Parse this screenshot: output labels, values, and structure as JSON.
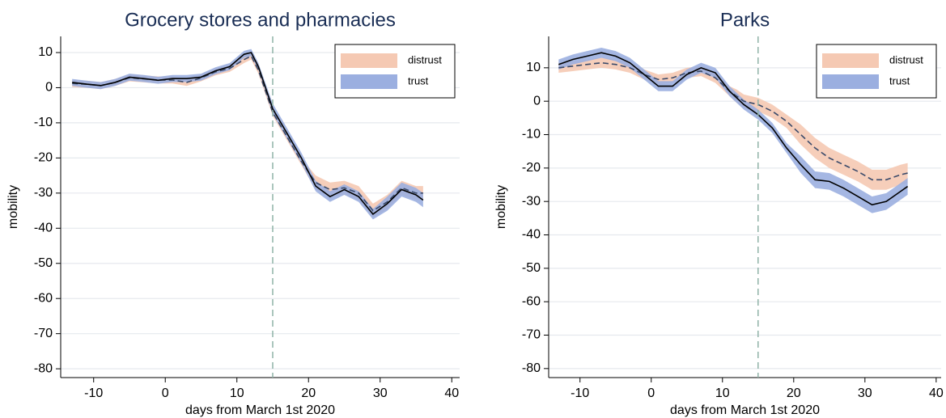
{
  "chart_data": [
    {
      "type": "line",
      "title": "Grocery stores and pharmacies",
      "xlabel": "days from March 1st 2020",
      "ylabel": "mobility",
      "x": [
        -13,
        -11,
        -9,
        -7,
        -5,
        -3,
        -1,
        1,
        3,
        5,
        7,
        9,
        11,
        12,
        13,
        15,
        17,
        19,
        21,
        23,
        25,
        27,
        29,
        31,
        33,
        35,
        36
      ],
      "xlim": [
        -14.6,
        41.1
      ],
      "ylim": [
        -82.5,
        14.6
      ],
      "xticks": [
        -10,
        0,
        10,
        20,
        30,
        40
      ],
      "yticks": [
        -80,
        -70,
        -60,
        -50,
        -40,
        -30,
        -20,
        -10,
        0,
        10
      ],
      "grid": true,
      "legend": "upper right",
      "vline": {
        "value": 15,
        "color": "#8fb3a8"
      },
      "series": [
        {
          "name": "distrust",
          "color": "#f5c9b3",
          "line_color": "#3a4a6a",
          "line_style": "dashed",
          "values": [
            1.2,
            1,
            0.6,
            1.5,
            2.8,
            2.5,
            2.2,
            2.2,
            1.5,
            2.8,
            4.5,
            5.5,
            8,
            9,
            5,
            -7,
            -14,
            -21,
            -27,
            -29,
            -28.5,
            -30,
            -35,
            -32.5,
            -28.5,
            -30,
            -30
          ],
          "lower": [
            0.2,
            0,
            -0.4,
            0.5,
            1.8,
            1.5,
            1.2,
            1.2,
            0.5,
            1.8,
            3.5,
            4.5,
            7,
            8,
            4,
            -8,
            -15,
            -22,
            -29,
            -31,
            -30.5,
            -32,
            -37,
            -34.5,
            -30.5,
            -32,
            -32
          ],
          "upper": [
            2.2,
            2,
            1.6,
            2.5,
            3.8,
            3.5,
            3.2,
            3.2,
            2.5,
            3.8,
            5.5,
            6.5,
            9,
            10,
            6,
            -6,
            -13,
            -20,
            -25,
            -27,
            -26.5,
            -28,
            -33,
            -30.5,
            -26.5,
            -28,
            -28
          ]
        },
        {
          "name": "trust",
          "color": "#9bafe0",
          "line_color": "#000000",
          "line_style": "solid",
          "values": [
            1.5,
            1,
            0.6,
            1.5,
            3,
            2.6,
            2.1,
            2.6,
            2.6,
            3,
            4.8,
            6,
            9.5,
            10,
            6,
            -6,
            -13,
            -20,
            -28,
            -31,
            -29,
            -31,
            -36,
            -33,
            -29,
            -30.5,
            -32
          ],
          "lower": [
            0.5,
            0,
            -0.4,
            0.5,
            2,
            1.6,
            1.1,
            1.6,
            1.6,
            2,
            3.8,
            5,
            8.5,
            9,
            5,
            -7.5,
            -14.5,
            -21.5,
            -29.5,
            -32.5,
            -30.5,
            -32.5,
            -37.5,
            -35,
            -31,
            -32.5,
            -34
          ],
          "upper": [
            2.5,
            2,
            1.6,
            2.5,
            4,
            3.6,
            3.1,
            3.6,
            3.6,
            4,
            5.8,
            7,
            10.5,
            11,
            7,
            -4.5,
            -11.5,
            -18.5,
            -26.5,
            -29.5,
            -27.5,
            -29.5,
            -34.5,
            -31,
            -27,
            -28.5,
            -30
          ]
        }
      ]
    },
    {
      "type": "line",
      "title": "Parks",
      "xlabel": "days from March 1st 2020",
      "ylabel": "mobility",
      "x": [
        -13,
        -11,
        -9,
        -7,
        -5,
        -3,
        -1,
        1,
        3,
        5,
        7,
        9,
        11,
        12,
        13,
        15,
        17,
        19,
        21,
        23,
        25,
        27,
        29,
        31,
        33,
        35,
        36
      ],
      "xlim": [
        -14.4,
        40.7
      ],
      "ylim": [
        -82.7,
        19.4
      ],
      "xticks": [
        -10,
        0,
        10,
        20,
        30,
        40
      ],
      "yticks": [
        -80,
        -70,
        -60,
        -50,
        -40,
        -30,
        -20,
        -10,
        0,
        10
      ],
      "grid": true,
      "legend": "upper right",
      "vline": {
        "value": 15,
        "color": "#8fb3a8"
      },
      "series": [
        {
          "name": "distrust",
          "color": "#f5c9b3",
          "line_color": "#3a4a6a",
          "line_style": "dashed",
          "values": [
            10,
            10.5,
            11,
            11.5,
            11,
            10,
            8,
            6.5,
            7,
            8.5,
            9,
            7,
            3,
            1.5,
            0,
            -1,
            -3,
            -6,
            -10,
            -14,
            -17,
            -19,
            -21,
            -23.5,
            -23.5,
            -22,
            -21.5
          ],
          "lower": [
            8.5,
            9,
            9.5,
            10,
            9.5,
            8.5,
            6.5,
            5,
            5.5,
            7,
            7.5,
            5.5,
            1.5,
            -0.5,
            -2,
            -3,
            -5,
            -8,
            -13,
            -17,
            -20,
            -22,
            -24,
            -26.5,
            -26.5,
            -25,
            -24.5
          ],
          "upper": [
            11.5,
            12,
            12.5,
            13,
            12.5,
            11.5,
            9.5,
            8,
            8.5,
            10,
            10.5,
            8.5,
            4.5,
            3.5,
            2,
            1,
            -1,
            -4,
            -7,
            -11,
            -14,
            -16,
            -18,
            -20.5,
            -20.5,
            -19,
            -18.5
          ]
        },
        {
          "name": "trust",
          "color": "#9bafe0",
          "line_color": "#000000",
          "line_style": "solid",
          "values": [
            11,
            12.5,
            13.5,
            14.5,
            13.5,
            11.5,
            8,
            4.5,
            4.5,
            8,
            10,
            8.5,
            3,
            1,
            -1,
            -4,
            -8,
            -14,
            -19,
            -23.5,
            -24,
            -26,
            -28.5,
            -31,
            -30,
            -27,
            -25.5
          ],
          "lower": [
            9.5,
            11,
            12,
            13,
            12,
            10,
            6.5,
            3,
            3,
            6.5,
            8.5,
            7,
            1.5,
            -0.5,
            -2.5,
            -5.5,
            -9.5,
            -15.5,
            -21.5,
            -26,
            -26.5,
            -28.5,
            -31,
            -33.5,
            -32.5,
            -29.5,
            -28
          ],
          "upper": [
            12.5,
            14,
            15,
            16,
            15,
            13,
            9.5,
            6,
            6,
            9.5,
            11.5,
            10,
            4.5,
            2.5,
            0.5,
            -2.5,
            -6.5,
            -12.5,
            -16.5,
            -21,
            -21.5,
            -23.5,
            -26,
            -28.5,
            -27.5,
            -24.5,
            -23
          ]
        }
      ]
    }
  ]
}
